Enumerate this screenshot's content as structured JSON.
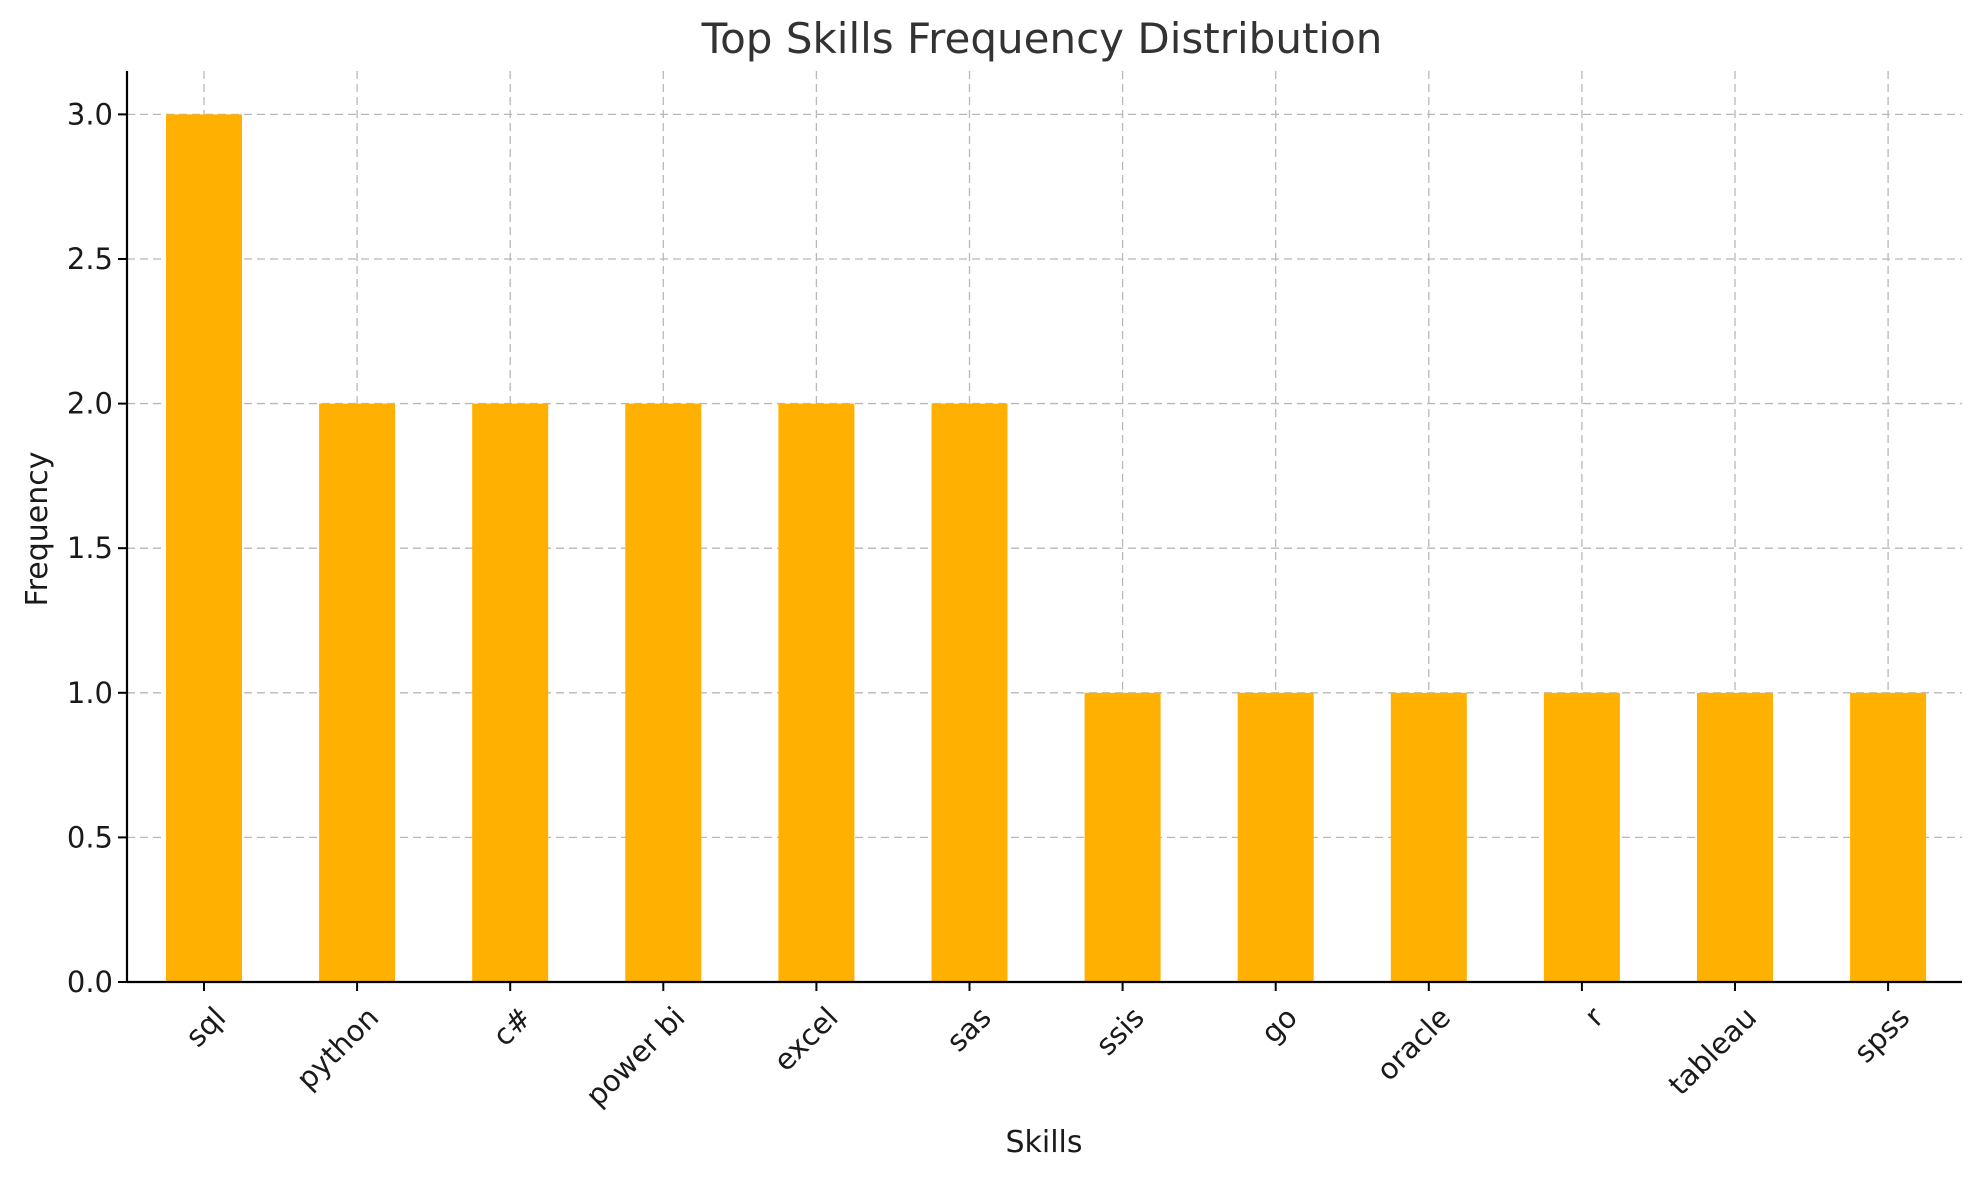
{
  "chart_data": {
    "type": "bar",
    "title": "Top Skills Frequency Distribution",
    "xlabel": "Skills",
    "ylabel": "Frequency",
    "categories": [
      "sql",
      "python",
      "c#",
      "power bi",
      "excel",
      "sas",
      "ssis",
      "go",
      "oracle",
      "r",
      "tableau",
      "spss"
    ],
    "values": [
      3,
      2,
      2,
      2,
      2,
      2,
      1,
      1,
      1,
      1,
      1,
      1
    ],
    "ylim": [
      0,
      3.15
    ],
    "yticks": [
      "0.0",
      "0.5",
      "1.0",
      "1.5",
      "2.0",
      "2.5",
      "3.0"
    ],
    "grid": true,
    "legend": "none",
    "bar_color": "#FFB000",
    "xtick_rotation": "45 degrees"
  }
}
